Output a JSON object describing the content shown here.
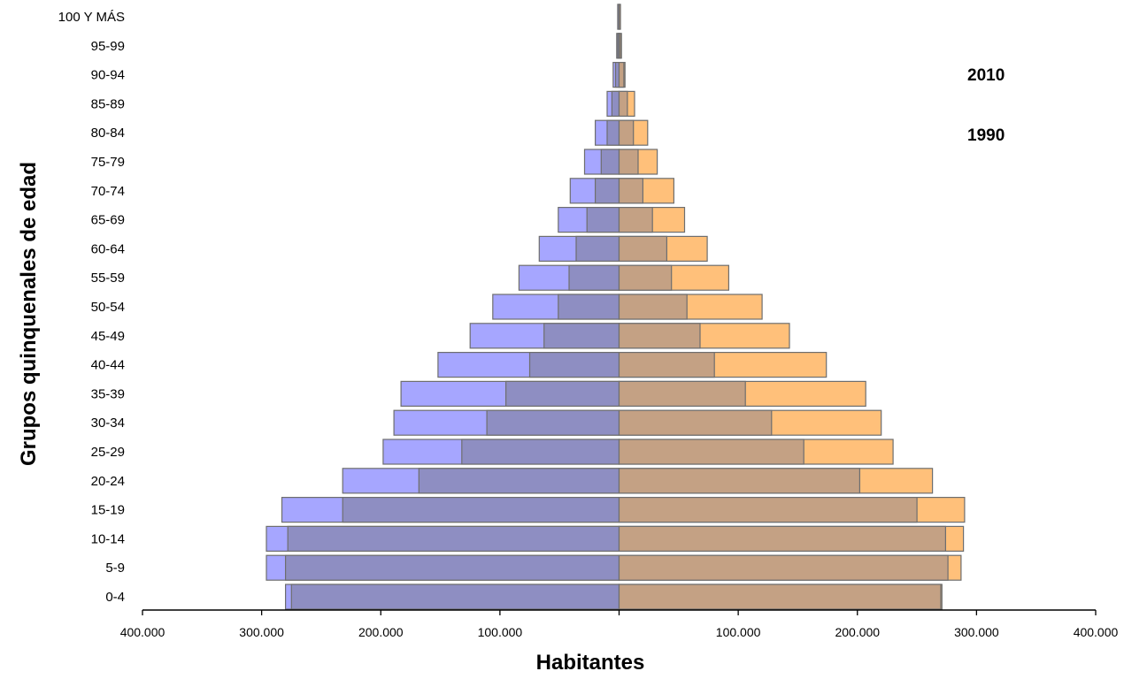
{
  "chart_data": {
    "type": "bar",
    "subtype": "population-pyramid",
    "title": "",
    "xlabel": "Habitantes",
    "ylabel": "Grupos quinquenales de edad",
    "categories": [
      "0-4",
      "5-9",
      "10-14",
      "15-19",
      "20-24",
      "25-29",
      "30-34",
      "35-39",
      "40-44",
      "45-49",
      "50-54",
      "55-59",
      "60-64",
      "65-69",
      "70-74",
      "75-79",
      "80-84",
      "85-89",
      "90-94",
      "95-99",
      "100 Y MÁS"
    ],
    "xlim": [
      -400000,
      400000
    ],
    "x_tick_values": [
      -400000,
      -300000,
      -200000,
      -100000,
      100000,
      200000,
      300000,
      400000
    ],
    "x_tick_labels": [
      "400.000",
      "300.000",
      "200.000",
      "100.000",
      "100.000",
      "200.000",
      "300.000",
      "400.000"
    ],
    "legend": [
      "2010",
      "1990"
    ],
    "series": [
      {
        "name": "2010",
        "side": "left",
        "color": "#a6a6ff",
        "values": [
          280000,
          296000,
          296000,
          283000,
          232000,
          198000,
          189000,
          183000,
          152000,
          125000,
          106000,
          84000,
          67000,
          51000,
          41000,
          29000,
          20000,
          10000,
          5000,
          2000,
          1000
        ]
      },
      {
        "name": "1990",
        "side": "left",
        "color": "#8e8ec2",
        "values": [
          275000,
          280000,
          278000,
          232000,
          168000,
          132000,
          111000,
          95000,
          75000,
          63000,
          51000,
          42000,
          36000,
          27000,
          20000,
          15000,
          10000,
          6000,
          3000,
          1000,
          500
        ]
      },
      {
        "name": "2010",
        "side": "right",
        "color": "#ffc07a",
        "values": [
          271000,
          287000,
          289000,
          290000,
          263000,
          230000,
          220000,
          207000,
          174000,
          143000,
          120000,
          92000,
          74000,
          55000,
          46000,
          32000,
          24000,
          13000,
          5000,
          2000,
          1000
        ]
      },
      {
        "name": "1990",
        "side": "right",
        "color": "#c4a184",
        "values": [
          270000,
          276000,
          274000,
          250000,
          202000,
          155000,
          128000,
          106000,
          80000,
          68000,
          57000,
          44000,
          40000,
          28000,
          20000,
          16000,
          12000,
          7000,
          4000,
          1000,
          500
        ]
      }
    ]
  }
}
